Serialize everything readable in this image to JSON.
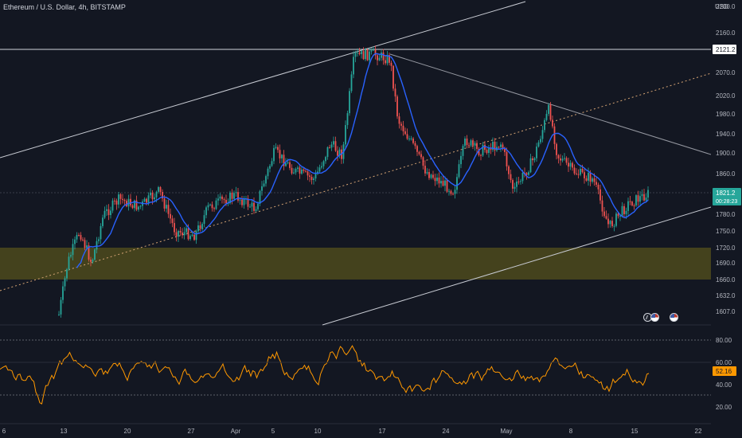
{
  "header": {
    "title": "Ethereum / U.S. Dollar, 4h, BITSTAMP",
    "currency": "USD"
  },
  "price_axis": {
    "ticks": [
      "2200.0",
      "2160.0",
      "2121.2",
      "2070.0",
      "2020.0",
      "1980.0",
      "1940.0",
      "1900.0",
      "1860.0",
      "1821.2",
      "1780.0",
      "1750.0",
      "1720.0",
      "1690.0",
      "1660.0",
      "1632.0",
      "1607.0"
    ],
    "high_tag": "2121.2",
    "last_price_tag": "1821.2",
    "countdown": "00:28:23"
  },
  "time_axis": {
    "labels": [
      "6",
      "13",
      "20",
      "27",
      "Apr",
      "5",
      "10",
      "17",
      "24",
      "May",
      "8",
      "15",
      "22"
    ]
  },
  "rsi": {
    "ticks": [
      "80.00",
      "60.00",
      "40.00",
      "20.00"
    ],
    "value_tag": "52.16"
  },
  "colors": {
    "background": "#131722",
    "bull": "#26a69a",
    "bear": "#ef5350",
    "ma": "#2962ff",
    "rsi": "#ff9800",
    "zone": "#4d4a1c",
    "last_price_tag": "#26a69a",
    "rsi_tag": "#ff9800"
  },
  "icons": {
    "event_1": "lightning-icon",
    "event_2": "us-flag-icon",
    "event_3": "us-flag-icon"
  }
}
